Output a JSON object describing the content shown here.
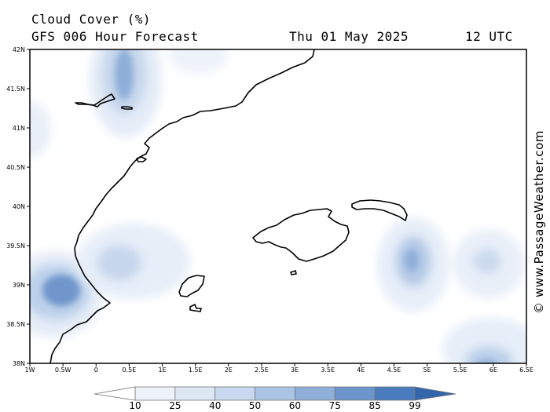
{
  "header": {
    "title": "Cloud Cover (%)",
    "subtitle": "GFS 006 Hour Forecast",
    "date": "Thu 01 May 2025",
    "time": "12 UTC"
  },
  "credit": "© www.PassageWeather.com",
  "map": {
    "lon_range": [
      -1,
      6.5
    ],
    "lat_range": [
      38,
      42
    ],
    "lon_ticks": [
      "1W",
      "0.5W",
      "0",
      "0.5E",
      "1E",
      "1.5E",
      "2E",
      "2.5E",
      "3E",
      "3.5E",
      "4E",
      "4.5E",
      "5E",
      "5.5E",
      "6E",
      "6.5E"
    ],
    "lat_ticks": [
      "38N",
      "38.5N",
      "39N",
      "39.5N",
      "40N",
      "40.5N",
      "41N",
      "41.5N",
      "42N"
    ]
  },
  "legend": {
    "labels": [
      "10",
      "25",
      "40",
      "50",
      "60",
      "75",
      "85",
      "99"
    ],
    "colors": [
      "#ffffff",
      "#edf2f9",
      "#dde7f4",
      "#c9d8ee",
      "#acc4e4",
      "#8faed8",
      "#6d95cb",
      "#4a7bbd",
      "#3366aa"
    ]
  },
  "colors": {
    "cloud_light": "#e4ecf7",
    "cloud_mid": "#b8cce8",
    "cloud_dark": "#7ba0d2",
    "coast": "#000000"
  }
}
